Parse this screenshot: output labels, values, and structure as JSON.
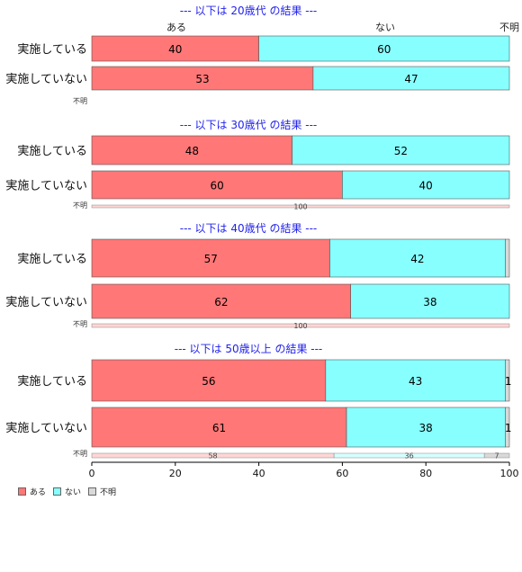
{
  "colors": {
    "aru": "#ff7777",
    "nai": "#88ffff",
    "fumei": "#d9d9d9"
  },
  "top_labels": {
    "aru": "ある",
    "nai": "ない",
    "fumei": "不明"
  },
  "legend": [
    {
      "key": "aru",
      "label": "ある",
      "color": "#ff7777"
    },
    {
      "key": "nai",
      "label": "ない",
      "color": "#88ffff"
    },
    {
      "key": "fumei",
      "label": "不明",
      "color": "#d9d9d9"
    }
  ],
  "chart_data": {
    "type": "bar",
    "orientation": "horizontal-stacked-100",
    "xlim": [
      0,
      100
    ],
    "xticks": [
      0,
      20,
      40,
      60,
      80,
      100
    ],
    "grid": false,
    "legend_position": "bottom-left",
    "panels": [
      {
        "title": "--- 以下は 20歳代 の結果 ---",
        "rows": [
          {
            "label": "実施している",
            "values": [
              40,
              60,
              0
            ],
            "labels": [
              "40",
              "60",
              ""
            ]
          },
          {
            "label": "実施していない",
            "values": [
              53,
              47,
              0
            ],
            "labels": [
              "53",
              "47",
              ""
            ]
          }
        ],
        "fumei": {
          "label": "不明",
          "values": [
            0,
            0,
            0
          ],
          "labels": [
            "",
            "",
            ""
          ]
        }
      },
      {
        "title": "--- 以下は 30歳代 の結果 ---",
        "rows": [
          {
            "label": "実施している",
            "values": [
              48,
              52,
              0
            ],
            "labels": [
              "48",
              "52",
              ""
            ]
          },
          {
            "label": "実施していない",
            "values": [
              60,
              40,
              0
            ],
            "labels": [
              "60",
              "40",
              ""
            ]
          }
        ],
        "fumei": {
          "label": "不明",
          "values": [
            100,
            0,
            0
          ],
          "labels": [
            "100",
            "",
            ""
          ]
        }
      },
      {
        "title": "--- 以下は 40歳代 の結果 ---",
        "rows": [
          {
            "label": "実施している",
            "values": [
              57,
              42,
              1
            ],
            "labels": [
              "57",
              "42",
              ""
            ]
          },
          {
            "label": "実施していない",
            "values": [
              62,
              38,
              0
            ],
            "labels": [
              "62",
              "38",
              ""
            ]
          }
        ],
        "fumei": {
          "label": "不明",
          "values": [
            100,
            0,
            0
          ],
          "labels": [
            "100",
            "",
            ""
          ]
        }
      },
      {
        "title": "--- 以下は 50歳以上 の結果 ---",
        "rows": [
          {
            "label": "実施している",
            "values": [
              56,
              43,
              1
            ],
            "labels": [
              "56",
              "43",
              "1"
            ]
          },
          {
            "label": "実施していない",
            "values": [
              61,
              38,
              1
            ],
            "labels": [
              "61",
              "38",
              "1"
            ]
          }
        ],
        "fumei": {
          "label": "不明",
          "values": [
            58,
            36,
            7
          ],
          "labels": [
            "58",
            "36",
            "7"
          ]
        }
      }
    ]
  }
}
